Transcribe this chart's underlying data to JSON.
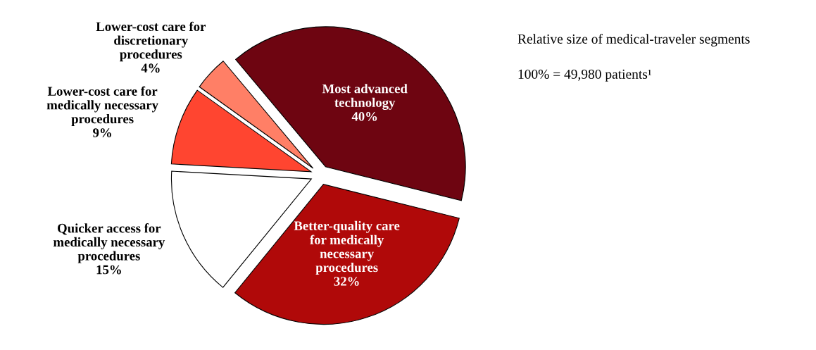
{
  "chart_data": {
    "type": "pie",
    "title": "Relative size of medical-traveler segments",
    "subtitle": "100% = 49,980 patients¹",
    "categories": [
      "Most advanced\ntechnology",
      "Better-quality care\nfor medically\nnecessary\nprocedures",
      "Quicker access for\nmedically necessary\nprocedures",
      "Lower-cost care for\nmedically necessary\nprocedures",
      "Lower-cost care for\ndiscretionary\nprocedures"
    ],
    "values": [
      40,
      32,
      15,
      9,
      4
    ],
    "value_labels": [
      "40%",
      "32%",
      "15%",
      "9%",
      "4%"
    ],
    "colors": [
      "#6e0511",
      "#b00909",
      "#ffffff",
      "#ff4530",
      "#ff7f66"
    ]
  }
}
